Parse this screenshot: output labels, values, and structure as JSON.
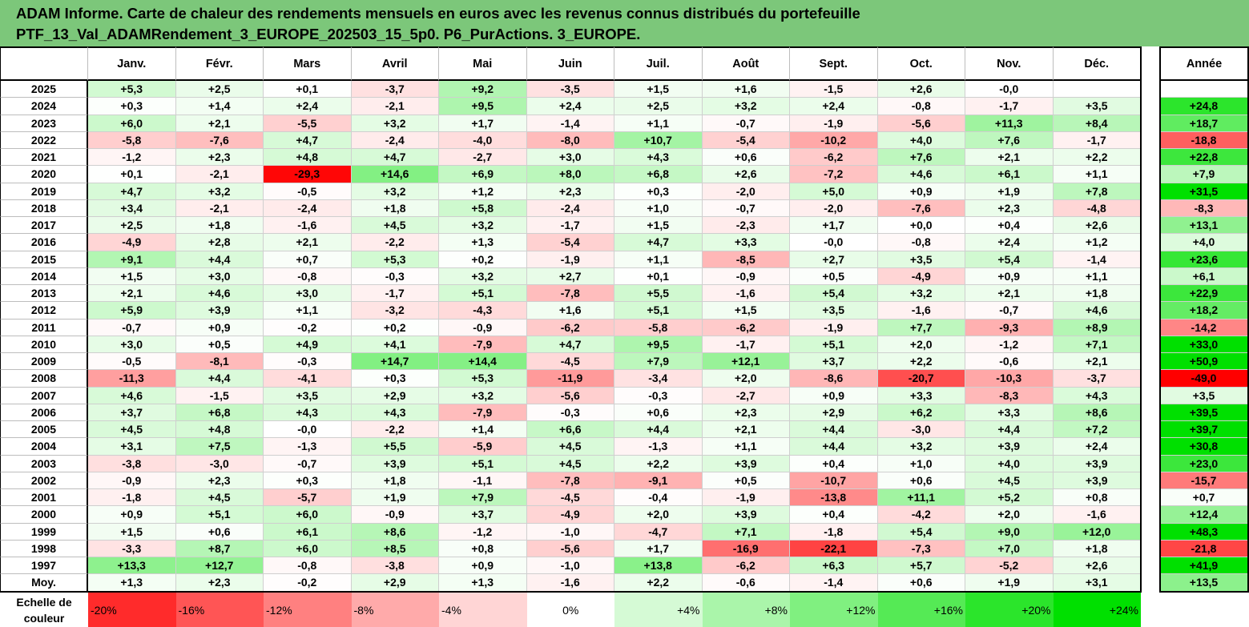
{
  "header": {
    "line1": "ADAM Informe. Carte de chaleur des rendements mensuels en euros avec les revenus connus distribués du portefeuille",
    "line2": "PTF_13_Val_ADAMRendement_3_EUROPE_202503_15_5p0. P6_PurActions. 3_EUROPE."
  },
  "colors": {
    "header_bg": "#7cc77a",
    "neg_max": "#ff0000",
    "pos_max": "#00e000",
    "neutral": "#ffffff"
  },
  "chart_data": {
    "type": "heatmap",
    "title": "ADAM Informe. Carte de chaleur des rendements mensuels en euros avec les revenus connus distribués du portefeuille",
    "subtitle": "PTF_13_Val_ADAMRendement_3_EUROPE_202503_15_5p0. P6_PurActions. 3_EUROPE.",
    "columns": [
      "Janv.",
      "Févr.",
      "Mars",
      "Avril",
      "Mai",
      "Juin",
      "Juil.",
      "Août",
      "Sept.",
      "Oct.",
      "Nov.",
      "Déc."
    ],
    "year_column_label": "Année",
    "rows": [
      {
        "label": "2025",
        "values": [
          "+5,3",
          "+2,5",
          "+0,1",
          "-3,7",
          "+9,2",
          "-3,5",
          "+1,5",
          "+1,6",
          "-1,5",
          "+2,6",
          "-0,0",
          ""
        ],
        "year": ""
      },
      {
        "label": "2024",
        "values": [
          "+0,3",
          "+1,4",
          "+2,4",
          "-2,1",
          "+9,5",
          "+2,4",
          "+2,5",
          "+3,2",
          "+2,4",
          "-0,8",
          "-1,7",
          "+3,5"
        ],
        "year": "+24,8"
      },
      {
        "label": "2023",
        "values": [
          "+6,0",
          "+2,1",
          "-5,5",
          "+3,2",
          "+1,7",
          "-1,4",
          "+1,1",
          "-0,7",
          "-1,9",
          "-5,6",
          "+11,3",
          "+8,4"
        ],
        "year": "+18,7"
      },
      {
        "label": "2022",
        "values": [
          "-5,8",
          "-7,6",
          "+4,7",
          "-2,4",
          "-4,0",
          "-8,0",
          "+10,7",
          "-5,4",
          "-10,2",
          "+4,0",
          "+7,6",
          "-1,7"
        ],
        "year": "-18,8"
      },
      {
        "label": "2021",
        "values": [
          "-1,2",
          "+2,3",
          "+4,8",
          "+4,7",
          "-2,7",
          "+3,0",
          "+4,3",
          "+0,6",
          "-6,2",
          "+7,6",
          "+2,1",
          "+2,2"
        ],
        "year": "+22,8"
      },
      {
        "label": "2020",
        "values": [
          "+0,1",
          "-2,1",
          "-29,3",
          "+14,6",
          "+6,9",
          "+8,0",
          "+6,8",
          "+2,6",
          "-7,2",
          "+4,6",
          "+6,1",
          "+1,1"
        ],
        "year": "+7,9"
      },
      {
        "label": "2019",
        "values": [
          "+4,7",
          "+3,2",
          "-0,5",
          "+3,2",
          "+1,2",
          "+2,3",
          "+0,3",
          "-2,0",
          "+5,0",
          "+0,9",
          "+1,9",
          "+7,8"
        ],
        "year": "+31,5"
      },
      {
        "label": "2018",
        "values": [
          "+3,4",
          "-2,1",
          "-2,4",
          "+1,8",
          "+5,8",
          "-2,4",
          "+1,0",
          "-0,7",
          "-2,0",
          "-7,6",
          "+2,3",
          "-4,8"
        ],
        "year": "-8,3"
      },
      {
        "label": "2017",
        "values": [
          "+2,5",
          "+1,8",
          "-1,6",
          "+4,5",
          "+3,2",
          "-1,7",
          "+1,5",
          "-2,3",
          "+1,7",
          "+0,0",
          "+0,4",
          "+2,6"
        ],
        "year": "+13,1"
      },
      {
        "label": "2016",
        "values": [
          "-4,9",
          "+2,8",
          "+2,1",
          "-2,2",
          "+1,3",
          "-5,4",
          "+4,7",
          "+3,3",
          "-0,0",
          "-0,8",
          "+2,4",
          "+1,2"
        ],
        "year": "+4,0"
      },
      {
        "label": "2015",
        "values": [
          "+9,1",
          "+4,4",
          "+0,7",
          "+5,3",
          "+0,2",
          "-1,9",
          "+1,1",
          "-8,5",
          "+2,7",
          "+3,5",
          "+5,4",
          "-1,4"
        ],
        "year": "+23,6"
      },
      {
        "label": "2014",
        "values": [
          "+1,5",
          "+3,0",
          "-0,8",
          "-0,3",
          "+3,2",
          "+2,7",
          "+0,1",
          "-0,9",
          "+0,5",
          "-4,9",
          "+0,9",
          "+1,1"
        ],
        "year": "+6,1"
      },
      {
        "label": "2013",
        "values": [
          "+2,1",
          "+4,6",
          "+3,0",
          "-1,7",
          "+5,1",
          "-7,8",
          "+5,5",
          "-1,6",
          "+5,4",
          "+3,2",
          "+2,1",
          "+1,8"
        ],
        "year": "+22,9"
      },
      {
        "label": "2012",
        "values": [
          "+5,9",
          "+3,9",
          "+1,1",
          "-3,2",
          "-4,3",
          "+1,6",
          "+5,1",
          "+1,5",
          "+3,5",
          "-1,6",
          "-0,7",
          "+4,6"
        ],
        "year": "+18,2"
      },
      {
        "label": "2011",
        "values": [
          "-0,7",
          "+0,9",
          "-0,2",
          "+0,2",
          "-0,9",
          "-6,2",
          "-5,8",
          "-6,2",
          "-1,9",
          "+7,7",
          "-9,3",
          "+8,9"
        ],
        "year": "-14,2"
      },
      {
        "label": "2010",
        "values": [
          "+3,0",
          "+0,5",
          "+4,9",
          "+4,1",
          "-7,9",
          "+4,7",
          "+9,5",
          "-1,7",
          "+5,1",
          "+2,0",
          "-1,2",
          "+7,1"
        ],
        "year": "+33,0"
      },
      {
        "label": "2009",
        "values": [
          "-0,5",
          "-8,1",
          "-0,3",
          "+14,7",
          "+14,4",
          "-4,5",
          "+7,9",
          "+12,1",
          "+3,7",
          "+2,2",
          "-0,6",
          "+2,1"
        ],
        "year": "+50,9"
      },
      {
        "label": "2008",
        "values": [
          "-11,3",
          "+4,4",
          "-4,1",
          "+0,3",
          "+5,3",
          "-11,9",
          "-3,4",
          "+2,0",
          "-8,6",
          "-20,7",
          "-10,3",
          "-3,7"
        ],
        "year": "-49,0"
      },
      {
        "label": "2007",
        "values": [
          "+4,6",
          "-1,5",
          "+3,5",
          "+2,9",
          "+3,2",
          "-5,6",
          "-0,3",
          "-2,7",
          "+0,9",
          "+3,3",
          "-8,3",
          "+4,3"
        ],
        "year": "+3,5"
      },
      {
        "label": "2006",
        "values": [
          "+3,7",
          "+6,8",
          "+4,3",
          "+4,3",
          "-7,9",
          "-0,3",
          "+0,6",
          "+2,3",
          "+2,9",
          "+6,2",
          "+3,3",
          "+8,6"
        ],
        "year": "+39,5"
      },
      {
        "label": "2005",
        "values": [
          "+4,5",
          "+4,8",
          "-0,0",
          "-2,2",
          "+1,4",
          "+6,6",
          "+4,4",
          "+2,1",
          "+4,4",
          "-3,0",
          "+4,4",
          "+7,2"
        ],
        "year": "+39,7"
      },
      {
        "label": "2004",
        "values": [
          "+3,1",
          "+7,5",
          "-1,3",
          "+5,5",
          "-5,9",
          "+4,5",
          "-1,3",
          "+1,1",
          "+4,4",
          "+3,2",
          "+3,9",
          "+2,4"
        ],
        "year": "+30,8"
      },
      {
        "label": "2003",
        "values": [
          "-3,8",
          "-3,0",
          "-0,7",
          "+3,9",
          "+5,1",
          "+4,5",
          "+2,2",
          "+3,9",
          "+0,4",
          "+1,0",
          "+4,0",
          "+3,9"
        ],
        "year": "+23,0"
      },
      {
        "label": "2002",
        "values": [
          "-0,9",
          "+2,3",
          "+0,3",
          "+1,8",
          "-1,1",
          "-7,8",
          "-9,1",
          "+0,5",
          "-10,7",
          "+0,6",
          "+4,5",
          "+3,9"
        ],
        "year": "-15,7"
      },
      {
        "label": "2001",
        "values": [
          "-1,8",
          "+4,5",
          "-5,7",
          "+1,9",
          "+7,9",
          "-4,5",
          "-0,4",
          "-1,9",
          "-13,8",
          "+11,1",
          "+5,2",
          "+0,8"
        ],
        "year": "+0,7"
      },
      {
        "label": "2000",
        "values": [
          "+0,9",
          "+5,1",
          "+6,0",
          "-0,9",
          "+3,7",
          "-4,9",
          "+2,0",
          "+3,9",
          "+0,4",
          "-4,2",
          "+2,0",
          "-1,6"
        ],
        "year": "+12,4"
      },
      {
        "label": "1999",
        "values": [
          "+1,5",
          "+0,6",
          "+6,1",
          "+8,6",
          "-1,2",
          "-1,0",
          "-4,7",
          "+7,1",
          "-1,8",
          "+5,4",
          "+9,0",
          "+12,0"
        ],
        "year": "+48,3"
      },
      {
        "label": "1998",
        "values": [
          "-3,3",
          "+8,7",
          "+6,0",
          "+8,5",
          "+0,8",
          "-5,6",
          "+1,7",
          "-16,9",
          "-22,1",
          "-7,3",
          "+7,0",
          "+1,8"
        ],
        "year": "-21,8"
      },
      {
        "label": "1997",
        "values": [
          "+13,3",
          "+12,7",
          "-0,8",
          "-3,8",
          "+0,9",
          "-1,0",
          "+13,8",
          "-6,2",
          "+6,3",
          "+5,7",
          "-5,2",
          "+2,6"
        ],
        "year": "+41,9"
      }
    ],
    "average_row": {
      "label": "Moy.",
      "values": [
        "+1,3",
        "+2,3",
        "-0,2",
        "+2,9",
        "+1,3",
        "-1,6",
        "+2,2",
        "-0,6",
        "-1,4",
        "+0,6",
        "+1,9",
        "+3,1"
      ],
      "year": "+13,5"
    },
    "scale": {
      "title_line1": "Echelle de",
      "title_line2": "couleur",
      "labels": [
        "-20%",
        "-16%",
        "-12%",
        "-8%",
        "-4%",
        "0%",
        "+4%",
        "+8%",
        "+12%",
        "+16%",
        "+20%",
        "+24%"
      ],
      "values": [
        -20,
        -16,
        -12,
        -8,
        -4,
        0,
        4,
        8,
        12,
        16,
        20,
        24
      ]
    }
  }
}
